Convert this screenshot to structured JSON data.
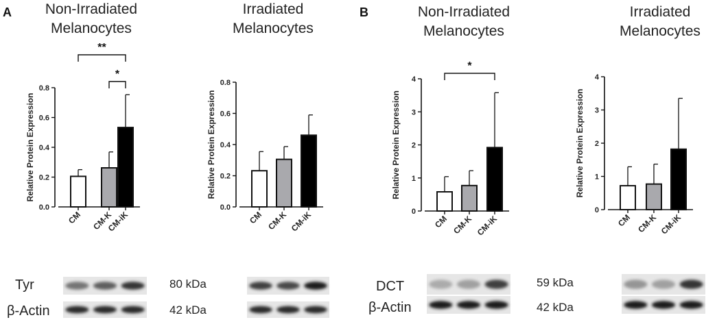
{
  "panels": [
    {
      "letter": "A"
    },
    {
      "letter": "B"
    }
  ],
  "chart_data": [
    {
      "type": "bar",
      "panel": "A",
      "title": "Non-Irradiated Melanocytes",
      "ylabel": "Relative Protein Expression",
      "ylim": [
        0,
        0.8
      ],
      "yticks": [
        "0.0",
        "0.2",
        "0.4",
        "0.6",
        "0.8"
      ],
      "categories": [
        "CM",
        "CM-K",
        "CM-iK"
      ],
      "values": [
        0.205,
        0.262,
        0.533
      ],
      "errors": [
        0.045,
        0.107,
        0.22
      ],
      "fills": [
        "#ffffff",
        "#a9a9ad",
        "#000000"
      ],
      "significance": [
        {
          "from": 0,
          "to": 2,
          "label": "**"
        },
        {
          "from": 1,
          "to": 2,
          "label": "*"
        }
      ]
    },
    {
      "type": "bar",
      "panel": "A",
      "title": "Irradiated Melanocytes",
      "ylabel": "Relative Protein Expression",
      "ylim": [
        0,
        0.8
      ],
      "yticks": [
        "0.0",
        "0.2",
        "0.4",
        "0.6",
        "0.8"
      ],
      "categories": [
        "CM",
        "CM-K",
        "CM-iK"
      ],
      "values": [
        0.232,
        0.305,
        0.46
      ],
      "errors": [
        0.123,
        0.082,
        0.13
      ],
      "fills": [
        "#ffffff",
        "#a9a9ad",
        "#000000"
      ],
      "significance": []
    },
    {
      "type": "bar",
      "panel": "B",
      "title": "Non-Irradiated Melanocytes",
      "ylabel": "Relative Protein Expression",
      "ylim": [
        0,
        4
      ],
      "yticks": [
        "0",
        "1",
        "2",
        "3",
        "4"
      ],
      "categories": [
        "CM",
        "CM-K",
        "CM-iK"
      ],
      "values": [
        0.58,
        0.77,
        1.92
      ],
      "errors": [
        0.46,
        0.45,
        1.66
      ],
      "fills": [
        "#ffffff",
        "#a9a9ad",
        "#000000"
      ],
      "significance": [
        {
          "from": 0,
          "to": 2,
          "label": "*"
        }
      ]
    },
    {
      "type": "bar",
      "panel": "B",
      "title": "Irradiated Melanocytes",
      "ylabel": "Relative Protein Expression",
      "ylim": [
        0,
        4
      ],
      "yticks": [
        "0",
        "1",
        "2",
        "3",
        "4"
      ],
      "categories": [
        "CM",
        "CM-K",
        "CM-iK"
      ],
      "values": [
        0.72,
        0.77,
        1.82
      ],
      "errors": [
        0.57,
        0.6,
        1.53
      ],
      "fills": [
        "#ffffff",
        "#a9a9ad",
        "#000000"
      ],
      "significance": []
    }
  ],
  "blots": {
    "A": {
      "target": "Tyr",
      "target_kda": "80 kDa",
      "loading": "β-Actin",
      "loading_kda": "42 kDa",
      "target_band_intensity": [
        0.55,
        0.65,
        0.85
      ],
      "loading_band_intensity": [
        0.9,
        0.9,
        0.9
      ],
      "irr_target_band_intensity": [
        0.8,
        0.75,
        0.95
      ],
      "irr_loading_band_intensity": [
        0.9,
        0.9,
        0.9
      ]
    },
    "B": {
      "target": "DCT",
      "target_kda": "59 kDa",
      "loading": "β-Actin",
      "loading_kda": "42 kDa",
      "target_band_intensity": [
        0.3,
        0.35,
        0.8
      ],
      "loading_band_intensity": [
        0.95,
        0.95,
        0.95
      ],
      "irr_target_band_intensity": [
        0.4,
        0.35,
        0.85
      ],
      "irr_loading_band_intensity": [
        0.95,
        0.95,
        0.95
      ]
    }
  }
}
